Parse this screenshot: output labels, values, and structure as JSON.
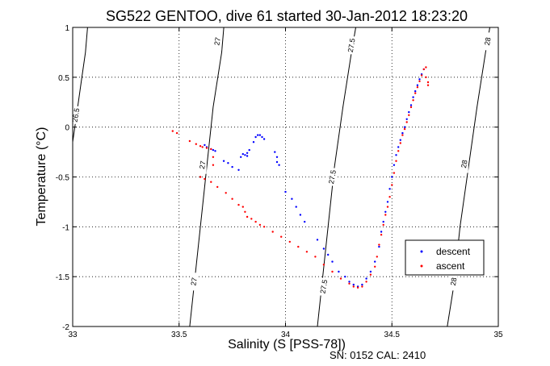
{
  "chart_data": {
    "type": "scatter",
    "title": "SG522 GENTOO, dive 61 started 30-Jan-2012 18:23:20",
    "xlabel": "Salinity (S [PSS-78])",
    "ylabel": "Temperature (°C)",
    "xlim": [
      33,
      35
    ],
    "ylim": [
      -2,
      1
    ],
    "grid": true,
    "legend_position": "bottom-right",
    "x_ticks": [
      {
        "value": 33,
        "label": "33"
      },
      {
        "value": 33.5,
        "label": "33.5"
      },
      {
        "value": 34,
        "label": "34"
      },
      {
        "value": 34.5,
        "label": "34.5"
      },
      {
        "value": 35,
        "label": "35"
      }
    ],
    "y_ticks": [
      {
        "value": -2,
        "label": "-2"
      },
      {
        "value": -1.5,
        "label": "-1.5"
      },
      {
        "value": -1,
        "label": "-1"
      },
      {
        "value": -0.5,
        "label": "-0.5"
      },
      {
        "value": 0,
        "label": "0"
      },
      {
        "value": 0.5,
        "label": "0.5"
      },
      {
        "value": 1,
        "label": "1"
      }
    ],
    "isopycnals": [
      {
        "label": "26.5",
        "points": [
          [
            33.0,
            -0.15
          ],
          [
            33.02,
            0.15
          ],
          [
            33.04,
            0.45
          ],
          [
            33.06,
            0.75
          ],
          [
            33.07,
            1.0
          ]
        ],
        "label_at": [
          33.015,
          0.12
        ]
      },
      {
        "label": "27",
        "points": [
          [
            33.55,
            -2.0
          ],
          [
            33.57,
            -1.6
          ],
          [
            33.6,
            -1.0
          ],
          [
            33.63,
            -0.4
          ],
          [
            33.66,
            0.2
          ],
          [
            33.7,
            0.75
          ],
          [
            33.71,
            1.0
          ]
        ],
        "label_at_list": [
          [
            33.57,
            -1.55
          ],
          [
            33.61,
            -0.38
          ],
          [
            33.68,
            0.86
          ]
        ]
      },
      {
        "label": "27.5",
        "points": [
          [
            34.15,
            -2.0
          ],
          [
            34.17,
            -1.6
          ],
          [
            34.2,
            -1.0
          ],
          [
            34.23,
            -0.4
          ],
          [
            34.27,
            0.2
          ],
          [
            34.31,
            0.75
          ],
          [
            34.33,
            1.0
          ]
        ],
        "label_at_list": [
          [
            34.18,
            -1.6
          ],
          [
            34.22,
            -0.5
          ],
          [
            34.31,
            0.82
          ]
        ]
      },
      {
        "label": "28",
        "points": [
          [
            34.76,
            -2.0
          ],
          [
            34.79,
            -1.6
          ],
          [
            34.82,
            -1.0
          ],
          [
            34.86,
            -0.4
          ],
          [
            34.9,
            0.2
          ],
          [
            34.94,
            0.75
          ],
          [
            34.96,
            1.0
          ]
        ],
        "label_at_list": [
          [
            34.79,
            -1.55
          ],
          [
            34.84,
            -0.37
          ],
          [
            34.95,
            0.86
          ]
        ]
      }
    ],
    "series": [
      {
        "name": "descent",
        "color": "#0000ff",
        "points": [
          [
            33.62,
            -0.18
          ],
          [
            33.63,
            -0.2
          ],
          [
            33.65,
            -0.22
          ],
          [
            33.66,
            -0.23
          ],
          [
            33.67,
            -0.24
          ],
          [
            33.71,
            -0.34
          ],
          [
            33.73,
            -0.36
          ],
          [
            33.75,
            -0.4
          ],
          [
            33.78,
            -0.43
          ],
          [
            33.79,
            -0.3
          ],
          [
            33.8,
            -0.27
          ],
          [
            33.81,
            -0.28
          ],
          [
            33.82,
            -0.29
          ],
          [
            33.82,
            -0.26
          ],
          [
            33.83,
            -0.23
          ],
          [
            33.85,
            -0.15
          ],
          [
            33.86,
            -0.1
          ],
          [
            33.87,
            -0.08
          ],
          [
            33.88,
            -0.08
          ],
          [
            33.89,
            -0.1
          ],
          [
            33.9,
            -0.12
          ],
          [
            33.95,
            -0.25
          ],
          [
            33.96,
            -0.3
          ],
          [
            33.96,
            -0.35
          ],
          [
            33.97,
            -0.38
          ],
          [
            34.0,
            -0.65
          ],
          [
            34.03,
            -0.72
          ],
          [
            34.05,
            -0.8
          ],
          [
            34.07,
            -0.88
          ],
          [
            34.09,
            -0.95
          ],
          [
            34.15,
            -1.13
          ],
          [
            34.18,
            -1.22
          ],
          [
            34.2,
            -1.28
          ],
          [
            34.22,
            -1.35
          ],
          [
            34.25,
            -1.45
          ],
          [
            34.28,
            -1.5
          ],
          [
            34.3,
            -1.55
          ],
          [
            34.32,
            -1.58
          ],
          [
            34.34,
            -1.6
          ],
          [
            34.36,
            -1.58
          ],
          [
            34.38,
            -1.52
          ],
          [
            34.4,
            -1.45
          ],
          [
            34.42,
            -1.35
          ],
          [
            34.44,
            -1.2
          ],
          [
            34.45,
            -1.05
          ],
          [
            34.46,
            -0.95
          ],
          [
            34.47,
            -0.85
          ],
          [
            34.48,
            -0.75
          ],
          [
            34.49,
            -0.62
          ],
          [
            34.5,
            -0.5
          ],
          [
            34.51,
            -0.38
          ],
          [
            34.52,
            -0.28
          ],
          [
            34.53,
            -0.2
          ],
          [
            34.54,
            -0.13
          ],
          [
            34.55,
            -0.06
          ],
          [
            34.56,
            0.0
          ],
          [
            34.57,
            0.08
          ],
          [
            34.58,
            0.15
          ],
          [
            34.59,
            0.22
          ],
          [
            34.6,
            0.3
          ],
          [
            34.61,
            0.36
          ],
          [
            34.62,
            0.42
          ],
          [
            34.63,
            0.48
          ],
          [
            34.64,
            0.53
          ],
          [
            34.65,
            0.58
          ]
        ]
      },
      {
        "name": "ascent",
        "color": "#ff0000",
        "points": [
          [
            33.47,
            -0.04
          ],
          [
            33.49,
            -0.06
          ],
          [
            33.55,
            -0.14
          ],
          [
            33.58,
            -0.17
          ],
          [
            33.6,
            -0.19
          ],
          [
            33.61,
            -0.2
          ],
          [
            33.63,
            -0.21
          ],
          [
            33.65,
            -0.22
          ],
          [
            33.66,
            -0.3
          ],
          [
            33.66,
            -0.38
          ],
          [
            33.6,
            -0.5
          ],
          [
            33.62,
            -0.52
          ],
          [
            33.65,
            -0.55
          ],
          [
            33.68,
            -0.6
          ],
          [
            33.72,
            -0.66
          ],
          [
            33.75,
            -0.72
          ],
          [
            33.78,
            -0.78
          ],
          [
            33.8,
            -0.8
          ],
          [
            33.81,
            -0.85
          ],
          [
            33.82,
            -0.9
          ],
          [
            33.84,
            -0.92
          ],
          [
            33.86,
            -0.95
          ],
          [
            33.88,
            -0.98
          ],
          [
            33.9,
            -1.0
          ],
          [
            33.94,
            -1.05
          ],
          [
            33.98,
            -1.1
          ],
          [
            34.02,
            -1.15
          ],
          [
            34.06,
            -1.2
          ],
          [
            34.1,
            -1.25
          ],
          [
            34.14,
            -1.3
          ],
          [
            34.18,
            -1.38
          ],
          [
            34.22,
            -1.45
          ],
          [
            34.26,
            -1.52
          ],
          [
            34.3,
            -1.57
          ],
          [
            34.32,
            -1.6
          ],
          [
            34.34,
            -1.61
          ],
          [
            34.36,
            -1.6
          ],
          [
            34.38,
            -1.55
          ],
          [
            34.4,
            -1.48
          ],
          [
            34.42,
            -1.4
          ],
          [
            34.43,
            -1.3
          ],
          [
            34.44,
            -1.18
          ],
          [
            34.45,
            -1.08
          ],
          [
            34.46,
            -0.98
          ],
          [
            34.47,
            -0.88
          ],
          [
            34.48,
            -0.8
          ],
          [
            34.49,
            -0.7
          ],
          [
            34.5,
            -0.58
          ],
          [
            34.51,
            -0.46
          ],
          [
            34.52,
            -0.34
          ],
          [
            34.53,
            -0.24
          ],
          [
            34.54,
            -0.16
          ],
          [
            34.55,
            -0.08
          ],
          [
            34.56,
            -0.02
          ],
          [
            34.57,
            0.05
          ],
          [
            34.58,
            0.12
          ],
          [
            34.59,
            0.2
          ],
          [
            34.6,
            0.27
          ],
          [
            34.61,
            0.34
          ],
          [
            34.62,
            0.4
          ],
          [
            34.63,
            0.46
          ],
          [
            34.64,
            0.52
          ],
          [
            34.65,
            0.58
          ],
          [
            34.66,
            0.6
          ],
          [
            34.66,
            0.5
          ],
          [
            34.67,
            0.45
          ],
          [
            34.67,
            0.42
          ]
        ]
      }
    ]
  },
  "footer": "SN: 0152  CAL: 2410"
}
